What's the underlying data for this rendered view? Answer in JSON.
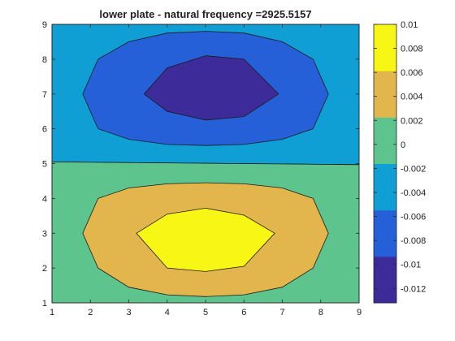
{
  "chart_data": {
    "type": "contour",
    "title": "lower plate - natural frequency =2925.5157",
    "xlabel": "",
    "ylabel": "",
    "xlim": [
      1,
      9
    ],
    "ylim": [
      1,
      9
    ],
    "x_ticks": [
      1,
      2,
      3,
      4,
      5,
      6,
      7,
      8,
      9
    ],
    "y_ticks": [
      1,
      2,
      3,
      4,
      5,
      6,
      7,
      8,
      9
    ],
    "colorbar": {
      "range": [
        -0.0132,
        0.01
      ],
      "ticks": [
        0.01,
        0.008,
        0.006,
        0.004,
        0.002,
        0,
        -0.002,
        -0.004,
        -0.006,
        -0.008,
        -0.01,
        -0.012
      ],
      "tick_labels": [
        "0.01",
        "0.008",
        "0.006",
        "0.004",
        "0.002",
        "0",
        "-0.002",
        "-0.004",
        "-0.006",
        "-0.008",
        "-0.01",
        "-0.012"
      ],
      "colormap": [
        "#3d2b9a",
        "#2660d8",
        "#0f9fd4",
        "#5cc48c",
        "#e3b54d",
        "#f8f614"
      ]
    },
    "regions": [
      {
        "level": "negative-small",
        "fill": "#0f9fd4",
        "polygon": [
          [
            1,
            5.05
          ],
          [
            9,
            4.97
          ],
          [
            9,
            9
          ],
          [
            1,
            9
          ]
        ]
      },
      {
        "level": "positive-small",
        "fill": "#5cc48c",
        "polygon": [
          [
            1,
            1
          ],
          [
            9,
            1
          ],
          [
            9,
            4.97
          ],
          [
            1,
            5.05
          ]
        ]
      },
      {
        "level": "negative-mid",
        "fill": "#2660d8",
        "polygon": [
          [
            1.8,
            7.0
          ],
          [
            2.2,
            8.0
          ],
          [
            3.0,
            8.5
          ],
          [
            4.0,
            8.75
          ],
          [
            5.0,
            8.8
          ],
          [
            6.0,
            8.75
          ],
          [
            7.0,
            8.5
          ],
          [
            7.8,
            8.0
          ],
          [
            8.2,
            7.0
          ],
          [
            7.8,
            6.0
          ],
          [
            7.0,
            5.7
          ],
          [
            6.0,
            5.55
          ],
          [
            5.0,
            5.52
          ],
          [
            4.0,
            5.55
          ],
          [
            3.0,
            5.7
          ],
          [
            2.2,
            6.0
          ]
        ]
      },
      {
        "level": "negative-large",
        "fill": "#3d2b9a",
        "polygon": [
          [
            3.4,
            7.0
          ],
          [
            4.0,
            7.75
          ],
          [
            5.0,
            8.1
          ],
          [
            6.0,
            8.0
          ],
          [
            6.9,
            7.0
          ],
          [
            6.0,
            6.35
          ],
          [
            5.0,
            6.25
          ],
          [
            4.0,
            6.5
          ]
        ]
      },
      {
        "level": "positive-mid",
        "fill": "#e3b54d",
        "polygon": [
          [
            1.8,
            3.0
          ],
          [
            2.2,
            4.0
          ],
          [
            3.0,
            4.3
          ],
          [
            4.0,
            4.42
          ],
          [
            5.0,
            4.45
          ],
          [
            6.0,
            4.42
          ],
          [
            7.0,
            4.3
          ],
          [
            7.8,
            4.0
          ],
          [
            8.2,
            3.0
          ],
          [
            7.8,
            2.0
          ],
          [
            7.0,
            1.45
          ],
          [
            6.0,
            1.23
          ],
          [
            5.0,
            1.18
          ],
          [
            4.0,
            1.23
          ],
          [
            3.0,
            1.45
          ],
          [
            2.2,
            2.0
          ]
        ]
      },
      {
        "level": "positive-large",
        "fill": "#f8f614",
        "polygon": [
          [
            3.2,
            3.0
          ],
          [
            4.0,
            3.55
          ],
          [
            5.0,
            3.72
          ],
          [
            6.0,
            3.52
          ],
          [
            6.8,
            3.0
          ],
          [
            6.0,
            2.05
          ],
          [
            5.0,
            1.9
          ],
          [
            4.0,
            2.0
          ]
        ]
      }
    ]
  }
}
